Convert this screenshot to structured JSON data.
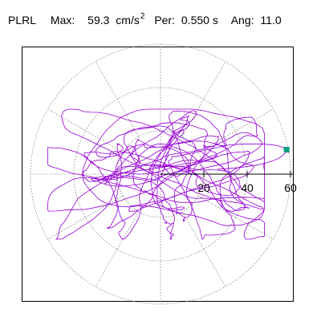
{
  "header": {
    "station": "PLRL",
    "max_label": "Max:",
    "max_value": "59.3",
    "max_unit": "cm/s",
    "max_exp": "2",
    "per_label": "Per:",
    "per_value": "0.550 s",
    "ang_label": "Ang:",
    "ang_value": "11.0"
  },
  "chart_data": {
    "type": "scatter",
    "subtype": "polar particle-motion (orbit) plot",
    "units": "cm/s^2",
    "radial_ticks": [
      20,
      40,
      60
    ],
    "radial_tick_labels": [
      "20",
      "40",
      "60"
    ],
    "radial_max": 60,
    "angular_gridlines_deg": [
      0,
      30,
      60,
      90,
      120,
      150,
      180,
      210,
      240,
      270,
      300,
      330
    ],
    "ring_gridlines": [
      20,
      40,
      60
    ],
    "grid": true,
    "max_point": {
      "x": 58.2,
      "y": 11.3,
      "magnitude": 59.3,
      "angle_deg": 11.0
    },
    "trace_color": "#9400d3",
    "max_marker_color": "#00a080",
    "grid_color": "#808080"
  }
}
